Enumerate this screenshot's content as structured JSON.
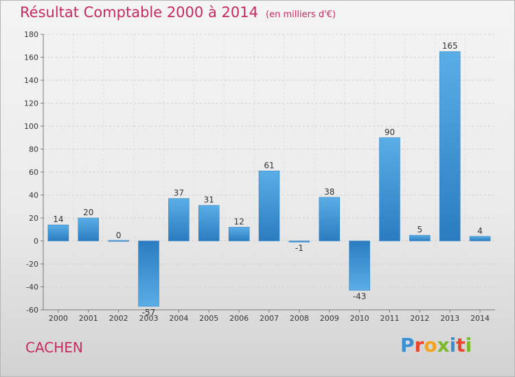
{
  "header": {
    "title": "Résultat Comptable 2000 à 2014",
    "unit": "(en milliers d'€)"
  },
  "footer": {
    "commune": "CACHEN",
    "logo_text": "Proxiti"
  },
  "colors": {
    "title": "#c72a5c",
    "bar_light": "#5aaee6",
    "bar_dark": "#2a7cc0",
    "logo": [
      "#3a8fd3",
      "#e8452b",
      "#f2a41f",
      "#7ab929",
      "#3a8fd3",
      "#e8452b",
      "#7ab929"
    ]
  },
  "chart_data": {
    "type": "bar",
    "title": "Résultat Comptable 2000 à 2014",
    "subtitle": "(en milliers d'€)",
    "categories": [
      "2000",
      "2001",
      "2002",
      "2003",
      "2004",
      "2005",
      "2006",
      "2007",
      "2008",
      "2009",
      "2010",
      "2011",
      "2012",
      "2013",
      "2014"
    ],
    "values": [
      14,
      20,
      0,
      -57,
      37,
      31,
      12,
      61,
      -1,
      38,
      -43,
      90,
      5,
      165,
      4
    ],
    "ylim": [
      -60,
      180
    ],
    "yticks": [
      -60,
      -40,
      -20,
      0,
      20,
      40,
      60,
      80,
      100,
      120,
      140,
      160,
      180
    ],
    "grid": true,
    "legend": "none"
  }
}
